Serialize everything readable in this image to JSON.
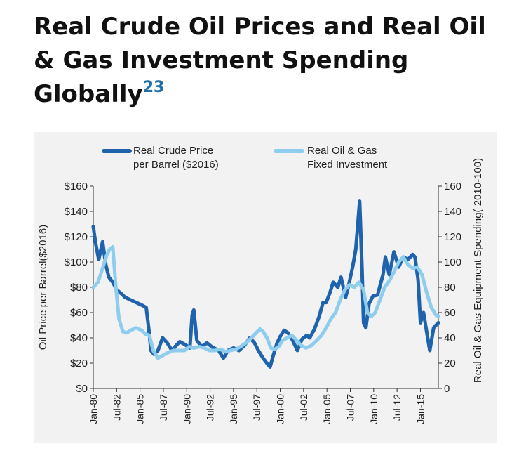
{
  "title": "Real Crude Oil Prices and Real Oil & Gas Investment Spending Globally",
  "title_superscript": "23",
  "chart_data": {
    "type": "line",
    "ylabel": "Oil Price per Barrel($2016)",
    "y2label": "Real Oil & Gas Equipment Spending( 2010-100)",
    "ylim": [
      0,
      160
    ],
    "y2lim": [
      0,
      160
    ],
    "xlim": [
      "1980-01",
      "2016-12"
    ],
    "yticks": [
      "$0",
      "$20",
      "$40",
      "$60",
      "$80",
      "$100",
      "$120",
      "$140",
      "$160"
    ],
    "y2ticks": [
      "0",
      "20",
      "40",
      "60",
      "80",
      "100",
      "120",
      "140",
      "160"
    ],
    "xticks": [
      "Jan-80",
      "Jul-82",
      "Jan-85",
      "Jul-87",
      "Jan-90",
      "Jul-92",
      "Jan-95",
      "Jul-97",
      "Jan-00",
      "Jul-02",
      "Jan-05",
      "Jul-07",
      "Jan-10",
      "Jul-12",
      "Jan-15"
    ],
    "legend_position": "top",
    "grid": false,
    "colors": {
      "price": "#1f63ad",
      "investment": "#8fcdee",
      "panel": "#f2f2f2"
    },
    "series": [
      {
        "name": "Real Crude Price per Barrel ($2016)",
        "axis": "left",
        "color": "#1f63ad",
        "x": [
          "1980-01",
          "1980-04",
          "1980-08",
          "1981-01",
          "1981-05",
          "1981-09",
          "1982-02",
          "1982-07",
          "1983-01",
          "1983-06",
          "1984-01",
          "1984-08",
          "1985-03",
          "1985-09",
          "1986-01",
          "1986-03",
          "1986-07",
          "1986-12",
          "1987-06",
          "1987-12",
          "1988-06",
          "1988-10",
          "1989-04",
          "1989-10",
          "1990-05",
          "1990-08",
          "1990-10",
          "1991-02",
          "1991-08",
          "1992-03",
          "1992-09",
          "1993-06",
          "1993-12",
          "1994-06",
          "1995-01",
          "1995-08",
          "1996-03",
          "1996-10",
          "1997-04",
          "1997-09",
          "1998-03",
          "1998-09",
          "1998-12",
          "1999-04",
          "1999-09",
          "2000-01",
          "2000-06",
          "2000-11",
          "2001-05",
          "2001-11",
          "2002-05",
          "2002-11",
          "2003-03",
          "2003-09",
          "2004-03",
          "2004-08",
          "2004-12",
          "2005-05",
          "2005-09",
          "2006-03",
          "2006-07",
          "2007-01",
          "2007-05",
          "2007-10",
          "2008-02",
          "2008-07",
          "2008-10",
          "2008-12",
          "2009-03",
          "2009-07",
          "2009-12",
          "2010-06",
          "2011-01",
          "2011-04",
          "2011-09",
          "2012-03",
          "2012-09",
          "2013-03",
          "2013-09",
          "2014-03",
          "2014-06",
          "2014-10",
          "2015-01",
          "2015-05",
          "2015-09",
          "2016-01",
          "2016-06",
          "2016-12"
        ],
        "values": [
          128,
          115,
          102,
          116,
          98,
          88,
          84,
          78,
          75,
          72,
          70,
          68,
          66,
          64,
          43,
          30,
          27,
          30,
          40,
          36,
          30,
          33,
          37,
          35,
          32,
          58,
          62,
          38,
          33,
          36,
          33,
          30,
          24,
          30,
          32,
          30,
          34,
          40,
          36,
          30,
          24,
          19,
          17,
          26,
          36,
          41,
          46,
          44,
          38,
          30,
          39,
          42,
          40,
          47,
          57,
          68,
          68,
          76,
          84,
          80,
          88,
          72,
          82,
          96,
          110,
          148,
          95,
          52,
          48,
          67,
          73,
          74,
          90,
          104,
          90,
          108,
          96,
          104,
          102,
          106,
          104,
          86,
          52,
          60,
          45,
          30,
          48,
          52
        ]
      },
      {
        "name": "Real Oil & Gas Fixed Investment",
        "axis": "right",
        "color": "#8fcdee",
        "x": [
          "1980-01",
          "1980-07",
          "1981-01",
          "1981-06",
          "1981-10",
          "1982-02",
          "1982-06",
          "1982-10",
          "1983-03",
          "1983-08",
          "1984-01",
          "1984-08",
          "1985-03",
          "1985-08",
          "1986-01",
          "1986-06",
          "1986-12",
          "1987-06",
          "1987-12",
          "1988-08",
          "1989-03",
          "1989-10",
          "1990-04",
          "1990-10",
          "1991-05",
          "1991-12",
          "1992-06",
          "1993-01",
          "1993-08",
          "1994-03",
          "1994-09",
          "1995-04",
          "1995-10",
          "1996-05",
          "1996-12",
          "1997-06",
          "1997-11",
          "1998-03",
          "1998-08",
          "1999-01",
          "1999-06",
          "1999-11",
          "2000-04",
          "2000-10",
          "2001-04",
          "2001-10",
          "2002-04",
          "2002-10",
          "2003-05",
          "2003-12",
          "2004-06",
          "2004-12",
          "2005-06",
          "2005-12",
          "2006-06",
          "2006-12",
          "2007-06",
          "2007-12",
          "2008-06",
          "2008-12",
          "2009-05",
          "2009-10",
          "2010-03",
          "2010-09",
          "2011-03",
          "2011-09",
          "2012-03",
          "2012-09",
          "2013-03",
          "2013-09",
          "2014-03",
          "2014-09",
          "2015-03",
          "2015-09",
          "2016-03",
          "2016-09",
          "2016-12"
        ],
        "values": [
          80,
          84,
          95,
          105,
          110,
          112,
          80,
          55,
          45,
          44,
          46,
          48,
          46,
          43,
          42,
          30,
          24,
          26,
          28,
          30,
          30,
          30,
          33,
          32,
          33,
          32,
          30,
          30,
          31,
          29,
          30,
          31,
          33,
          36,
          40,
          44,
          47,
          45,
          40,
          32,
          31,
          33,
          38,
          40,
          42,
          38,
          34,
          32,
          34,
          38,
          42,
          48,
          55,
          60,
          70,
          78,
          82,
          80,
          84,
          78,
          60,
          57,
          60,
          70,
          80,
          85,
          92,
          100,
          104,
          98,
          95,
          96,
          90,
          76,
          64,
          58,
          57
        ]
      }
    ]
  }
}
